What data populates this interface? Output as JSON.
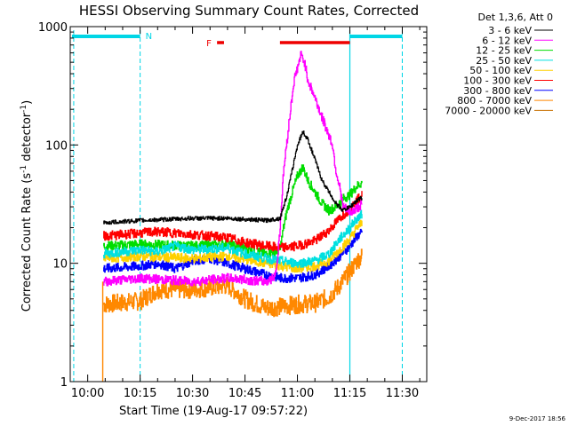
{
  "chart_data": {
    "type": "line",
    "title": "HESSI Observing Summary Count Rates, Corrected",
    "xlabel": "Start Time (19-Aug-17 09:57:22)",
    "ylabel_parts": [
      "Corrected Count Rate (s",
      "-1",
      " detector",
      "-1",
      ")"
    ],
    "x_unit": "minutes of day (UT)",
    "xlim": [
      595,
      697
    ],
    "ylim": [
      1,
      1000
    ],
    "yscale": "log",
    "x_ticks": [
      {
        "t": 600,
        "label": "10:00"
      },
      {
        "t": 615,
        "label": "10:15"
      },
      {
        "t": 630,
        "label": "10:30"
      },
      {
        "t": 645,
        "label": "10:45"
      },
      {
        "t": 660,
        "label": "11:00"
      },
      {
        "t": 675,
        "label": "11:15"
      },
      {
        "t": 690,
        "label": "11:30"
      }
    ],
    "y_ticks": [
      {
        "v": 1,
        "label": "1"
      },
      {
        "v": 10,
        "label": "10"
      },
      {
        "v": 100,
        "label": "100"
      },
      {
        "v": 1000,
        "label": "1000"
      }
    ],
    "legend_header": "Det 1,3,6, Att 0",
    "legend_position": "right",
    "series": [
      {
        "name": "3 - 6 keV",
        "color": "#000000",
        "points": [
          [
            604.5,
            22
          ],
          [
            615,
            23
          ],
          [
            630,
            24
          ],
          [
            640,
            24
          ],
          [
            651,
            23
          ],
          [
            655,
            24
          ],
          [
            657,
            38
          ],
          [
            658.5,
            62
          ],
          [
            660,
            100
          ],
          [
            661.5,
            130
          ],
          [
            663,
            110
          ],
          [
            665,
            75
          ],
          [
            667,
            50
          ],
          [
            669,
            40
          ],
          [
            671,
            32
          ],
          [
            673,
            28
          ],
          [
            675,
            30
          ],
          [
            677,
            34
          ],
          [
            678.5,
            36
          ]
        ]
      },
      {
        "name": "6 - 12 keV",
        "color": "#ff00ff",
        "points": [
          [
            604.5,
            7
          ],
          [
            615,
            7.5
          ],
          [
            630,
            7
          ],
          [
            640,
            7.5
          ],
          [
            651,
            7
          ],
          [
            653,
            7.5
          ],
          [
            654,
            9
          ],
          [
            655,
            20
          ],
          [
            656,
            60
          ],
          [
            657,
            110
          ],
          [
            658,
            200
          ],
          [
            659,
            350
          ],
          [
            660,
            450
          ],
          [
            661,
            580
          ],
          [
            662,
            500
          ],
          [
            663,
            350
          ],
          [
            665,
            250
          ],
          [
            667,
            170
          ],
          [
            669,
            120
          ],
          [
            670,
            100
          ],
          [
            671,
            60
          ],
          [
            672,
            45
          ],
          [
            673,
            30
          ],
          [
            675,
            27
          ],
          [
            677,
            29
          ],
          [
            678.5,
            32
          ]
        ]
      },
      {
        "name": "12 - 25 keV",
        "color": "#00dd00",
        "points": [
          [
            604.5,
            14
          ],
          [
            615,
            14.5
          ],
          [
            630,
            14
          ],
          [
            640,
            14.5
          ],
          [
            651,
            12
          ],
          [
            653,
            12.5
          ],
          [
            655,
            13
          ],
          [
            656,
            20
          ],
          [
            657,
            28
          ],
          [
            658.5,
            40
          ],
          [
            660,
            55
          ],
          [
            661.5,
            65
          ],
          [
            663,
            50
          ],
          [
            665,
            40
          ],
          [
            667,
            32
          ],
          [
            669,
            28
          ],
          [
            671,
            30
          ],
          [
            673,
            35
          ],
          [
            675,
            38
          ],
          [
            677,
            45
          ],
          [
            678.5,
            48
          ]
        ]
      },
      {
        "name": "25 - 50 keV",
        "color": "#00e0e0",
        "points": [
          [
            604.5,
            12
          ],
          [
            615,
            13
          ],
          [
            620,
            12.5
          ],
          [
            625,
            14
          ],
          [
            630,
            13
          ],
          [
            640,
            13.5
          ],
          [
            645,
            12
          ],
          [
            651,
            11
          ],
          [
            655,
            10.5
          ],
          [
            660,
            10
          ],
          [
            665,
            10.5
          ],
          [
            669,
            12
          ],
          [
            672,
            16
          ],
          [
            675,
            20
          ],
          [
            677,
            24
          ],
          [
            678.5,
            26
          ]
        ]
      },
      {
        "name": "50 - 100 keV",
        "color": "#ffd000",
        "points": [
          [
            604.5,
            11
          ],
          [
            615,
            11.5
          ],
          [
            630,
            11
          ],
          [
            640,
            11.5
          ],
          [
            651,
            10
          ],
          [
            660,
            9
          ],
          [
            665,
            9.5
          ],
          [
            669,
            10.5
          ],
          [
            672,
            13
          ],
          [
            675,
            16
          ],
          [
            677,
            20
          ],
          [
            678.5,
            22
          ]
        ]
      },
      {
        "name": "100 - 300 keV",
        "color": "#ff0000",
        "points": [
          [
            604.5,
            17
          ],
          [
            615,
            18
          ],
          [
            620,
            18.5
          ],
          [
            630,
            17.5
          ],
          [
            640,
            16.5
          ],
          [
            645,
            15
          ],
          [
            651,
            14
          ],
          [
            655,
            13.5
          ],
          [
            660,
            14
          ],
          [
            665,
            15.5
          ],
          [
            669,
            19
          ],
          [
            672,
            24
          ],
          [
            675,
            29
          ],
          [
            677,
            34
          ],
          [
            678.5,
            38
          ]
        ]
      },
      {
        "name": "300 - 800 keV",
        "color": "#0000ff",
        "points": [
          [
            604.5,
            9
          ],
          [
            615,
            9.5
          ],
          [
            620,
            10
          ],
          [
            625,
            9
          ],
          [
            630,
            10.5
          ],
          [
            635,
            11
          ],
          [
            640,
            10
          ],
          [
            645,
            9
          ],
          [
            651,
            8
          ],
          [
            655,
            7.5
          ],
          [
            660,
            7.5
          ],
          [
            665,
            8
          ],
          [
            669,
            9.5
          ],
          [
            672,
            11.5
          ],
          [
            675,
            14
          ],
          [
            677,
            17
          ],
          [
            678.5,
            18
          ]
        ]
      },
      {
        "name": "800 - 7000 keV",
        "color": "#ff8800",
        "points": [
          [
            604.5,
            4.5
          ],
          [
            615,
            4.8
          ],
          [
            620,
            6
          ],
          [
            630,
            6
          ],
          [
            640,
            6.5
          ],
          [
            645,
            5
          ],
          [
            651,
            4.2
          ],
          [
            655,
            4.3
          ],
          [
            660,
            4.5
          ],
          [
            665,
            4.6
          ],
          [
            669,
            5.2
          ],
          [
            672,
            6.5
          ],
          [
            675,
            8.5
          ],
          [
            677,
            10.5
          ],
          [
            678.5,
            11.5
          ]
        ]
      },
      {
        "name": "7000 - 20000 keV",
        "color": "#c87000",
        "points": []
      }
    ],
    "night_segments": [
      [
        595,
        615
      ],
      [
        675,
        690
      ]
    ],
    "night_label": "N",
    "flag_segments": [
      {
        "from": 637,
        "to": 639,
        "label": "F"
      },
      {
        "from": 655,
        "to": 675,
        "label": ""
      }
    ],
    "saa_line_top": 35
  },
  "footer": {
    "timestamp": "9-Dec-2017 18:56"
  },
  "colors": {
    "cyan": "#00d6e6",
    "flag": "#ee0000"
  }
}
